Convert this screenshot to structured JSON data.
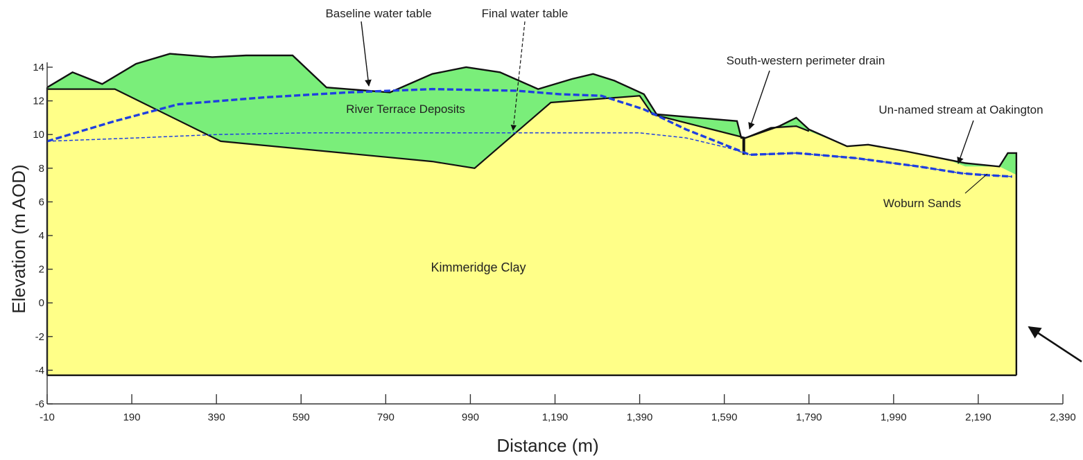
{
  "chart_data": {
    "type": "cross-section",
    "xlabel": "Distance (m)",
    "ylabel": "Elevation (m AOD)",
    "xlim": [
      -10,
      2390
    ],
    "ylim": [
      -6,
      15
    ],
    "x_ticks": [
      "-10",
      "190",
      "390",
      "590",
      "790",
      "990",
      "1,190",
      "1,390",
      "1,590",
      "1,790",
      "1,990",
      "2,190",
      "2,390"
    ],
    "y_ticks": [
      "14",
      "12",
      "10",
      "8",
      "6",
      "4",
      "2",
      "0",
      "-2",
      "-4",
      "-6"
    ],
    "layers": [
      {
        "name": "Kimmeridge Clay",
        "color": "#ffff88",
        "top_surface": [
          [
            -10,
            12.7
          ],
          [
            150,
            12.7
          ],
          [
            400,
            9.6
          ],
          [
            900,
            8.4
          ],
          [
            1000,
            8
          ],
          [
            1180,
            11.9
          ],
          [
            1390,
            12.3
          ],
          [
            1420,
            11.2
          ],
          [
            1640,
            9.8
          ]
        ],
        "base_elevation": -4.3
      },
      {
        "name": "River Terrace Deposits",
        "color": "#7aee7a",
        "top_surface": [
          [
            -10,
            12.8
          ],
          [
            50,
            13.7
          ],
          [
            120,
            13
          ],
          [
            200,
            14.2
          ],
          [
            280,
            14.8
          ],
          [
            380,
            14.6
          ],
          [
            460,
            14.7
          ],
          [
            570,
            14.7
          ],
          [
            650,
            12.8
          ],
          [
            800,
            12.5
          ],
          [
            900,
            13.6
          ],
          [
            980,
            14
          ],
          [
            1060,
            13.7
          ],
          [
            1150,
            12.7
          ],
          [
            1230,
            13.3
          ],
          [
            1280,
            13.6
          ],
          [
            1330,
            13.2
          ],
          [
            1400,
            12.4
          ]
        ]
      },
      {
        "name": "Woburn Sands",
        "color": "#ffff88"
      }
    ],
    "ground_surface": [
      [
        -10,
        12.8
      ],
      [
        50,
        13.7
      ],
      [
        120,
        13
      ],
      [
        200,
        14.2
      ],
      [
        280,
        14.8
      ],
      [
        380,
        14.6
      ],
      [
        460,
        14.7
      ],
      [
        570,
        14.7
      ],
      [
        650,
        12.8
      ],
      [
        800,
        12.5
      ],
      [
        900,
        13.6
      ],
      [
        980,
        14
      ],
      [
        1060,
        13.7
      ],
      [
        1150,
        12.7
      ],
      [
        1230,
        13.3
      ],
      [
        1280,
        13.6
      ],
      [
        1330,
        13.2
      ],
      [
        1400,
        12.4
      ],
      [
        1430,
        11.2
      ],
      [
        1620,
        10.8
      ],
      [
        1630,
        9.8
      ],
      [
        1640,
        9.8
      ],
      [
        1720,
        10.5
      ],
      [
        1760,
        11
      ],
      [
        1790,
        10.3
      ],
      [
        1880,
        9.3
      ],
      [
        1930,
        9.4
      ],
      [
        2020,
        9
      ],
      [
        2120,
        8.5
      ],
      [
        2160,
        8.3
      ],
      [
        2240,
        8.1
      ],
      [
        2260,
        8.9
      ],
      [
        2280,
        8.9
      ],
      [
        2280,
        -4.3
      ]
    ],
    "water_tables": [
      {
        "name": "Baseline water table",
        "style": "thick-dashed",
        "color": "#1f3fe0",
        "points": [
          [
            -10,
            9.6
          ],
          [
            150,
            10.8
          ],
          [
            300,
            11.8
          ],
          [
            500,
            12.2
          ],
          [
            700,
            12.5
          ],
          [
            900,
            12.7
          ],
          [
            1100,
            12.6
          ],
          [
            1200,
            12.4
          ],
          [
            1300,
            12.3
          ],
          [
            1400,
            11.5
          ],
          [
            1500,
            10.3
          ],
          [
            1600,
            9.3
          ],
          [
            1650,
            8.8
          ],
          [
            1760,
            8.9
          ],
          [
            1900,
            8.6
          ],
          [
            2050,
            8.1
          ],
          [
            2150,
            7.7
          ],
          [
            2200,
            7.6
          ],
          [
            2270,
            7.5
          ]
        ]
      },
      {
        "name": "Final water table",
        "style": "thin-dashed",
        "color": "#1f3fe0",
        "points": [
          [
            -10,
            9.6
          ],
          [
            200,
            9.8
          ],
          [
            390,
            10
          ],
          [
            600,
            10.1
          ],
          [
            800,
            10.1
          ],
          [
            990,
            10.1
          ],
          [
            1190,
            10.1
          ],
          [
            1390,
            10.1
          ],
          [
            1500,
            9.8
          ],
          [
            1600,
            9.2
          ],
          [
            1650,
            8.8
          ],
          [
            1760,
            8.9
          ],
          [
            1900,
            8.6
          ],
          [
            2050,
            8.1
          ],
          [
            2150,
            7.7
          ],
          [
            2270,
            7.5
          ]
        ]
      }
    ],
    "annotations": [
      {
        "text": "Baseline water table",
        "points_to": "baseline water table near x=790"
      },
      {
        "text": "Final water table",
        "points_to": "final water table near x=1060"
      },
      {
        "text": "River Terrace Deposits",
        "type": "layer label"
      },
      {
        "text": "South-western perimeter drain",
        "points_to": "drain at x=1640"
      },
      {
        "text": "Un-named stream at Oakington",
        "points_to": "stream near x=2180"
      },
      {
        "text": "Woburn Sands",
        "type": "layer label"
      },
      {
        "text": "Kimmeridge Clay",
        "type": "layer label"
      }
    ],
    "grid": false
  }
}
